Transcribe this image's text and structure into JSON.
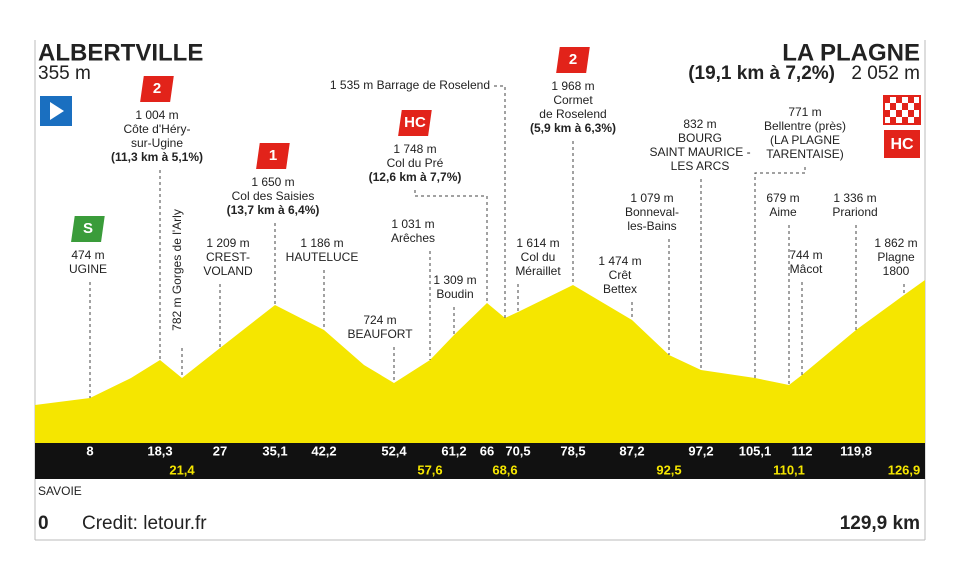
{
  "start": {
    "name": "ALBERTVILLE",
    "altitude": "355 m"
  },
  "finish": {
    "name": "LA PLAGNE",
    "climb": "(19,1 km à 7,2%)",
    "altitude": "2 052 m",
    "badge": "HC"
  },
  "waypoints": [
    {
      "km": "8",
      "altitude": "474 m",
      "name": [
        "UGINE"
      ],
      "badge": "S"
    },
    {
      "km": "18,3",
      "altitude": "1 004 m",
      "name": [
        "Côte d'Héry-",
        "sur-Ugine"
      ],
      "climb": "(11,3 km à 5,1%)",
      "badge": "2"
    },
    {
      "km": "21,4",
      "label": "782 m Gorges de l'Arly"
    },
    {
      "km": "27",
      "altitude": "1 209 m",
      "name": [
        "CREST-",
        "VOLAND"
      ]
    },
    {
      "km": "35,1",
      "altitude": "1 650 m",
      "name": [
        "Col des Saisies"
      ],
      "climb": "(13,7 km à 6,4%)",
      "badge": "1"
    },
    {
      "km": "42,2",
      "altitude": "1 186 m",
      "name": [
        "HAUTELUCE"
      ]
    },
    {
      "km": "52,4",
      "altitude": "724 m",
      "name": [
        "BEAUFORT"
      ]
    },
    {
      "km": "57,6",
      "altitude": "1 031 m",
      "name": [
        "Arêches"
      ]
    },
    {
      "km": "61,2",
      "altitude": "1 309 m",
      "name": [
        "Boudin"
      ]
    },
    {
      "km": "66",
      "altitude": "1 748 m",
      "name": [
        "Col du Pré"
      ],
      "climb": "(12,6 km à 7,7%)",
      "badge": "HC"
    },
    {
      "km": "68,6",
      "label": "1 535 m Barrage de Roselend"
    },
    {
      "km": "70,5",
      "altitude": "1 614 m",
      "name": [
        "Col du",
        "Méraillet"
      ]
    },
    {
      "km": "78,5",
      "altitude": "1 968 m",
      "name": [
        "Cormet",
        "de Roselend"
      ],
      "climb": "(5,9 km à 6,3%)",
      "badge": "2"
    },
    {
      "km": "87,2",
      "altitude": "1 474 m",
      "name": [
        "Crêt",
        "Bettex"
      ]
    },
    {
      "km": "92,5",
      "altitude": "1 079 m",
      "name": [
        "Bonneval-",
        "les-Bains"
      ]
    },
    {
      "km": "97,2",
      "altitude": "832 m",
      "name": [
        "BOURG",
        "SAINT MAURICE -",
        "LES ARCS"
      ]
    },
    {
      "km": "105,1",
      "altitude": "771 m",
      "name": [
        "Bellentre (près)",
        "(LA PLAGNE",
        "TARENTAISE)"
      ]
    },
    {
      "km": "110,1",
      "altitude": "679 m",
      "name": [
        "Aime"
      ]
    },
    {
      "km": "112",
      "altitude": "744 m",
      "name": [
        "Mâcot"
      ]
    },
    {
      "km": "119,8",
      "altitude": "1 336 m",
      "name": [
        "Prariond"
      ]
    },
    {
      "km": "126,9",
      "altitude": "1 862 m",
      "name": [
        "Plagne",
        "1800"
      ]
    }
  ],
  "region": "SAVOIE",
  "start_km": "0",
  "credit": "Credit: letour.fr",
  "total": "129,9 km"
}
